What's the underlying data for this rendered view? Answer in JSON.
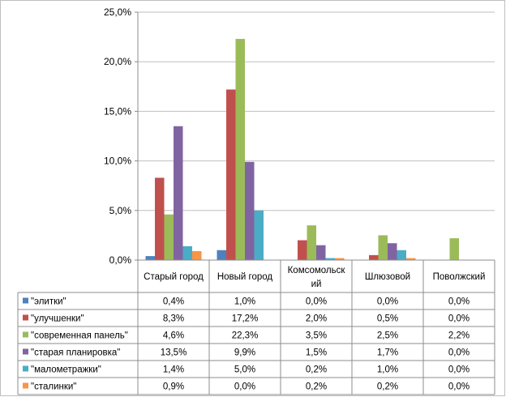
{
  "chart_data": {
    "type": "bar",
    "title": "",
    "xlabel": "",
    "ylabel": "",
    "ylim": [
      0,
      25
    ],
    "yticks": [
      "0,0%",
      "5,0%",
      "10,0%",
      "15,0%",
      "20,0%",
      "25,0%"
    ],
    "grid": true,
    "legend": "data-table-left",
    "categories": [
      "Старый город",
      "Новый город",
      "Комсомольский",
      "Шлюзовой",
      "Поволжский"
    ],
    "category_labels": [
      [
        "Старый город"
      ],
      [
        "Новый город"
      ],
      [
        "Комсомольск",
        "ий"
      ],
      [
        "Шлюзовой"
      ],
      [
        "Поволжский"
      ]
    ],
    "series": [
      {
        "name": "\"элитки\"",
        "color": "#4f81bd",
        "values": [
          0.4,
          1.0,
          0.0,
          0.0,
          0.0
        ],
        "labels": [
          "0,4%",
          "1,0%",
          "0,0%",
          "0,0%",
          "0,0%"
        ]
      },
      {
        "name": "\"улучшенки\"",
        "color": "#c0504d",
        "values": [
          8.3,
          17.2,
          2.0,
          0.5,
          0.0
        ],
        "labels": [
          "8,3%",
          "17,2%",
          "2,0%",
          "0,5%",
          "0,0%"
        ]
      },
      {
        "name": "\"современная  панель\"",
        "color": "#9bbb59",
        "values": [
          4.6,
          22.3,
          3.5,
          2.5,
          2.2
        ],
        "labels": [
          "4,6%",
          "22,3%",
          "3,5%",
          "2,5%",
          "2,2%"
        ]
      },
      {
        "name": "\"старая планировка\"",
        "color": "#8064a2",
        "values": [
          13.5,
          9.9,
          1.5,
          1.7,
          0.0
        ],
        "labels": [
          "13,5%",
          "9,9%",
          "1,5%",
          "1,7%",
          "0,0%"
        ]
      },
      {
        "name": "\"малометражки\"",
        "color": "#4bacc6",
        "values": [
          1.4,
          5.0,
          0.2,
          1.0,
          0.0
        ],
        "labels": [
          "1,4%",
          "5,0%",
          "0,2%",
          "1,0%",
          "0,0%"
        ]
      },
      {
        "name": "\"сталинки\"",
        "color": "#f79646",
        "values": [
          0.9,
          0.0,
          0.2,
          0.2,
          0.0
        ],
        "labels": [
          "0,9%",
          "0,0%",
          "0,2%",
          "0,2%",
          "0,0%"
        ]
      }
    ]
  }
}
